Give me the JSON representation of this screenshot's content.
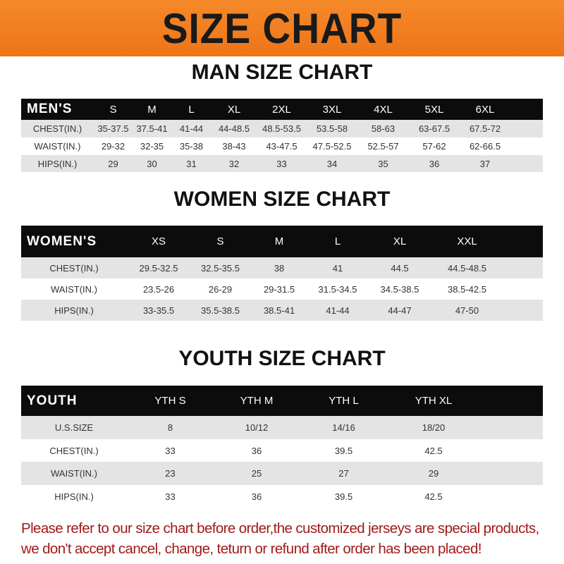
{
  "banner_title": "SIZE CHART",
  "men": {
    "title": "MAN SIZE CHART",
    "header": "MEN'S",
    "sizes": [
      "S",
      "M",
      "L",
      "XL",
      "2XL",
      "3XL",
      "4XL",
      "5XL",
      "6XL"
    ],
    "rows": [
      {
        "label": "CHEST(IN.)",
        "values": [
          "35-37.5",
          "37.5-41",
          "41-44",
          "44-48.5",
          "48.5-53.5",
          "53.5-58",
          "58-63",
          "63-67.5",
          "67.5-72"
        ]
      },
      {
        "label": "WAIST(IN.)",
        "values": [
          "29-32",
          "32-35",
          "35-38",
          "38-43",
          "43-47.5",
          "47.5-52.5",
          "52.5-57",
          "57-62",
          "62-66.5"
        ]
      },
      {
        "label": "HIPS(IN.)",
        "values": [
          "29",
          "30",
          "31",
          "32",
          "33",
          "34",
          "35",
          "36",
          "37"
        ]
      }
    ]
  },
  "women": {
    "title": "WOMEN SIZE CHART",
    "header": "WOMEN'S",
    "sizes": [
      "XS",
      "S",
      "M",
      "L",
      "XL",
      "XXL"
    ],
    "rows": [
      {
        "label": "CHEST(IN.)",
        "values": [
          "29.5-32.5",
          "32.5-35.5",
          "38",
          "41",
          "44.5",
          "44.5-48.5"
        ]
      },
      {
        "label": "WAIST(IN.)",
        "values": [
          "23.5-26",
          "26-29",
          "29-31.5",
          "31.5-34.5",
          "34.5-38.5",
          "38.5-42.5"
        ]
      },
      {
        "label": "HIPS(IN.)",
        "values": [
          "33-35.5",
          "35.5-38.5",
          "38.5-41",
          "41-44",
          "44-47",
          "47-50"
        ]
      }
    ]
  },
  "youth": {
    "title": "YOUTH SIZE CHART",
    "header": "YOUTH",
    "sizes": [
      "YTH S",
      "YTH M",
      "YTH L",
      "YTH XL"
    ],
    "rows": [
      {
        "label": "U.S.SIZE",
        "values": [
          "8",
          "10/12",
          "14/16",
          "18/20"
        ]
      },
      {
        "label": "CHEST(IN.)",
        "values": [
          "33",
          "36",
          "39.5",
          "42.5"
        ]
      },
      {
        "label": "WAIST(IN.)",
        "values": [
          "23",
          "25",
          "27",
          "29"
        ]
      },
      {
        "label": "HIPS(IN.)",
        "values": [
          "33",
          "36",
          "39.5",
          "42.5"
        ]
      }
    ]
  },
  "note": [
    "Please refer to our size chart before order,the customized jerseys are special products,",
    "we don't accept cancel, change, teturn or refund after order has been placed!"
  ],
  "colors": {
    "banner": "#f07a1c",
    "header_row": "#0c0c0c",
    "stripe": "#e4e4e4",
    "note": "#a11a1a"
  }
}
